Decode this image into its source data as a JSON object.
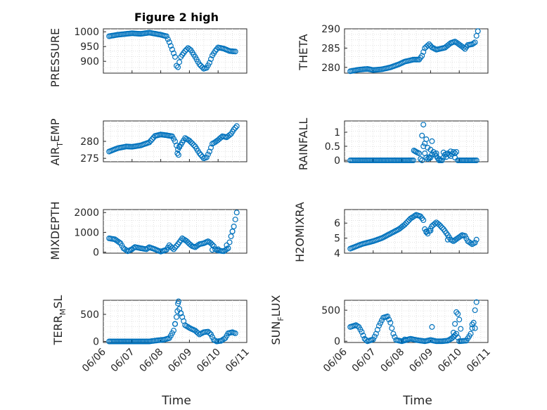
{
  "figure_title": "Figure 2 high",
  "colors": {
    "marker": "#0072BD",
    "axes": "#262626",
    "grid": "#dadada"
  },
  "chart_data": [
    {
      "type": "scatter",
      "ylabel": "PRESSURE",
      "ylim": [
        860,
        1010
      ],
      "yticks": [
        900,
        950,
        1000
      ],
      "xlim": [
        0,
        5
      ],
      "xtick_labels": [],
      "knots": [
        [
          0.2,
          985
        ],
        [
          0.5,
          990
        ],
        [
          1.0,
          995
        ],
        [
          1.3,
          993
        ],
        [
          1.6,
          997
        ],
        [
          2.0,
          990
        ],
        [
          2.2,
          985
        ],
        [
          2.3,
          965
        ],
        [
          2.4,
          940
        ],
        [
          2.5,
          915
        ],
        [
          2.55,
          885
        ],
        [
          2.6,
          880
        ],
        [
          2.7,
          915
        ],
        [
          2.85,
          935
        ],
        [
          2.95,
          945
        ],
        [
          3.05,
          938
        ],
        [
          3.2,
          915
        ],
        [
          3.35,
          890
        ],
        [
          3.5,
          875
        ],
        [
          3.6,
          878
        ],
        [
          3.7,
          895
        ],
        [
          3.8,
          920
        ],
        [
          3.9,
          935
        ],
        [
          4.0,
          947
        ],
        [
          4.2,
          943
        ],
        [
          4.4,
          935
        ],
        [
          4.6,
          933
        ]
      ],
      "extra_points": []
    },
    {
      "type": "scatter",
      "ylabel": "THETA",
      "ylim": [
        278.5,
        290
      ],
      "yticks": [
        280,
        285,
        290
      ],
      "xlim": [
        0,
        5
      ],
      "xtick_labels": [],
      "knots": [
        [
          0.2,
          279
        ],
        [
          0.5,
          279.4
        ],
        [
          0.8,
          279.6
        ],
        [
          1.0,
          279.3
        ],
        [
          1.3,
          279.5
        ],
        [
          1.6,
          280
        ],
        [
          1.9,
          280.8
        ],
        [
          2.1,
          281.5
        ],
        [
          2.4,
          282
        ],
        [
          2.6,
          282
        ],
        [
          2.7,
          283
        ],
        [
          2.8,
          285
        ],
        [
          2.95,
          286
        ],
        [
          3.05,
          285.2
        ],
        [
          3.2,
          284.6
        ],
        [
          3.5,
          285.1
        ],
        [
          3.7,
          286.3
        ],
        [
          3.85,
          286.7
        ],
        [
          3.95,
          286.2
        ],
        [
          4.1,
          285.4
        ],
        [
          4.2,
          284.8
        ],
        [
          4.3,
          285.8
        ],
        [
          4.45,
          286
        ],
        [
          4.55,
          286.5
        ],
        [
          4.6,
          288.2
        ],
        [
          4.65,
          289.4
        ]
      ],
      "extra_points": []
    },
    {
      "type": "scatter",
      "ylabel": "AIR_TEMP",
      "ylim": [
        274,
        286
      ],
      "yticks": [
        275,
        280
      ],
      "xlim": [
        0,
        5
      ],
      "xtick_labels": [],
      "knots": [
        [
          0.2,
          277
        ],
        [
          0.5,
          278
        ],
        [
          0.8,
          278.5
        ],
        [
          1.0,
          278.4
        ],
        [
          1.3,
          278.8
        ],
        [
          1.6,
          279.7
        ],
        [
          1.8,
          281.6
        ],
        [
          2.0,
          282
        ],
        [
          2.2,
          281.8
        ],
        [
          2.4,
          281.5
        ],
        [
          2.5,
          280
        ],
        [
          2.6,
          277.6
        ],
        [
          2.7,
          279
        ],
        [
          2.85,
          281
        ],
        [
          3.0,
          280.2
        ],
        [
          3.2,
          278.5
        ],
        [
          3.35,
          276.5
        ],
        [
          3.5,
          275
        ],
        [
          3.6,
          275.3
        ],
        [
          3.7,
          277
        ],
        [
          3.8,
          279.3
        ],
        [
          3.9,
          279.8
        ],
        [
          4.0,
          280.4
        ],
        [
          4.15,
          281.5
        ],
        [
          4.3,
          281.2
        ],
        [
          4.45,
          282.2
        ],
        [
          4.55,
          283.5
        ],
        [
          4.65,
          284.5
        ]
      ],
      "extra_points": [
        [
          2.58,
          276.5
        ],
        [
          2.62,
          276
        ],
        [
          2.65,
          278.5
        ]
      ]
    },
    {
      "type": "scatter",
      "ylabel": "RAINFALL",
      "ylim": [
        -0.05,
        1.4
      ],
      "yticks": [
        0,
        0.5,
        1
      ],
      "xlim": [
        0,
        5
      ],
      "xtick_labels": [],
      "knots": [
        [
          0.2,
          0
        ],
        [
          2.4,
          0
        ],
        [
          2.42,
          0.35
        ],
        [
          2.5,
          0.3
        ],
        [
          2.6,
          0.25
        ],
        [
          2.65,
          0.05
        ],
        [
          2.7,
          0
        ],
        [
          2.75,
          0.5
        ],
        [
          2.8,
          0.25
        ],
        [
          2.85,
          0.1
        ],
        [
          2.9,
          0.05
        ],
        [
          3.0,
          0.1
        ],
        [
          3.1,
          0.3
        ],
        [
          3.2,
          0.15
        ],
        [
          3.3,
          0
        ],
        [
          3.4,
          0
        ],
        [
          3.5,
          0.2
        ],
        [
          3.6,
          0.25
        ],
        [
          3.7,
          0.15
        ],
        [
          3.8,
          0.3
        ],
        [
          3.85,
          0.25
        ],
        [
          3.9,
          0.3
        ],
        [
          3.95,
          0
        ],
        [
          4.6,
          0
        ]
      ],
      "extra_points": [
        [
          2.75,
          1.27
        ],
        [
          2.7,
          0.88
        ],
        [
          2.85,
          0.75
        ],
        [
          3.05,
          0.68
        ],
        [
          2.8,
          0.6
        ],
        [
          2.9,
          0.45
        ],
        [
          3.0,
          0.38
        ],
        [
          3.2,
          0.25
        ],
        [
          3.45,
          0.28
        ],
        [
          3.7,
          0.32
        ],
        [
          3.3,
          0.05
        ],
        [
          3.55,
          0.12
        ],
        [
          3.85,
          0.1
        ],
        [
          2.95,
          0.12
        ]
      ]
    },
    {
      "type": "scatter",
      "ylabel": "MIXDEPTH",
      "ylim": [
        -50,
        2150
      ],
      "yticks": [
        0,
        1000,
        2000
      ],
      "xlim": [
        0,
        5
      ],
      "xtick_labels": [],
      "knots": [
        [
          0.2,
          700
        ],
        [
          0.4,
          650
        ],
        [
          0.6,
          450
        ],
        [
          0.7,
          200
        ],
        [
          0.85,
          50
        ],
        [
          1.0,
          150
        ],
        [
          1.1,
          260
        ],
        [
          1.3,
          200
        ],
        [
          1.5,
          150
        ],
        [
          1.6,
          250
        ],
        [
          1.8,
          150
        ],
        [
          1.9,
          80
        ],
        [
          2.0,
          30
        ],
        [
          2.2,
          120
        ],
        [
          2.3,
          350
        ],
        [
          2.45,
          150
        ],
        [
          2.6,
          400
        ],
        [
          2.75,
          700
        ],
        [
          2.9,
          560
        ],
        [
          3.0,
          420
        ],
        [
          3.1,
          300
        ],
        [
          3.2,
          250
        ],
        [
          3.35,
          400
        ],
        [
          3.5,
          450
        ],
        [
          3.65,
          550
        ],
        [
          3.75,
          450
        ],
        [
          3.85,
          300
        ],
        [
          3.9,
          150
        ],
        [
          4.0,
          80
        ],
        [
          4.2,
          50
        ],
        [
          4.35,
          200
        ],
        [
          4.45,
          800
        ],
        [
          4.55,
          1300
        ],
        [
          4.65,
          2000
        ]
      ],
      "extra_points": [
        [
          3.8,
          120
        ],
        [
          4.0,
          150
        ],
        [
          4.3,
          350
        ],
        [
          4.5,
          1050
        ]
      ]
    },
    {
      "type": "scatter",
      "ylabel": "H2OMIXRA",
      "ylim": [
        4,
        6.9
      ],
      "yticks": [
        4,
        5,
        6
      ],
      "xlim": [
        0,
        5
      ],
      "xtick_labels": [],
      "knots": [
        [
          0.2,
          4.3
        ],
        [
          0.4,
          4.45
        ],
        [
          0.6,
          4.6
        ],
        [
          0.8,
          4.7
        ],
        [
          1.0,
          4.8
        ],
        [
          1.3,
          5.0
        ],
        [
          1.6,
          5.3
        ],
        [
          1.9,
          5.6
        ],
        [
          2.1,
          5.9
        ],
        [
          2.3,
          6.3
        ],
        [
          2.5,
          6.55
        ],
        [
          2.65,
          6.45
        ],
        [
          2.75,
          6.2
        ],
        [
          2.8,
          5.6
        ],
        [
          2.9,
          5.3
        ],
        [
          3.05,
          5.8
        ],
        [
          3.2,
          6.05
        ],
        [
          3.3,
          5.9
        ],
        [
          3.45,
          5.6
        ],
        [
          3.6,
          5.2
        ],
        [
          3.7,
          4.9
        ],
        [
          3.8,
          4.8
        ],
        [
          3.95,
          5.0
        ],
        [
          4.1,
          5.2
        ],
        [
          4.2,
          5.15
        ],
        [
          4.3,
          4.8
        ],
        [
          4.45,
          4.6
        ],
        [
          4.55,
          4.7
        ],
        [
          4.6,
          4.9
        ]
      ],
      "extra_points": [
        [
          2.85,
          5.4
        ],
        [
          3.0,
          5.5
        ],
        [
          3.6,
          4.9
        ]
      ]
    },
    {
      "type": "scatter",
      "ylabel": "TERR_MSL",
      "ylim": [
        -20,
        760
      ],
      "yticks": [
        0,
        500
      ],
      "xlim": [
        0,
        5
      ],
      "xtick_labels": [
        "06/06",
        "06/07",
        "06/08",
        "06/09",
        "06/10",
        "06/11"
      ],
      "knots": [
        [
          0.2,
          0
        ],
        [
          1.6,
          0
        ],
        [
          1.9,
          20
        ],
        [
          2.1,
          30
        ],
        [
          2.3,
          60
        ],
        [
          2.45,
          200
        ],
        [
          2.55,
          450
        ],
        [
          2.6,
          700
        ],
        [
          2.65,
          600
        ],
        [
          2.75,
          450
        ],
        [
          2.85,
          300
        ],
        [
          3.0,
          250
        ],
        [
          3.2,
          200
        ],
        [
          3.35,
          130
        ],
        [
          3.5,
          170
        ],
        [
          3.65,
          180
        ],
        [
          3.75,
          130
        ],
        [
          3.85,
          30
        ],
        [
          3.95,
          0
        ],
        [
          4.1,
          10
        ],
        [
          4.25,
          60
        ],
        [
          4.35,
          150
        ],
        [
          4.5,
          170
        ],
        [
          4.6,
          150
        ]
      ],
      "extra_points": [
        [
          2.58,
          560
        ],
        [
          2.62,
          740
        ],
        [
          2.7,
          520
        ],
        [
          2.5,
          320
        ]
      ]
    },
    {
      "type": "scatter",
      "ylabel": "SUN_FLUX",
      "ylim": [
        -20,
        660
      ],
      "yticks": [
        0,
        500
      ],
      "xlim": [
        0,
        5
      ],
      "xtick_labels": [
        "06/06",
        "06/07",
        "06/08",
        "06/09",
        "06/10",
        "06/11"
      ],
      "knots": [
        [
          0.2,
          230
        ],
        [
          0.4,
          260
        ],
        [
          0.5,
          230
        ],
        [
          0.6,
          150
        ],
        [
          0.7,
          40
        ],
        [
          0.8,
          0
        ],
        [
          1.0,
          30
        ],
        [
          1.1,
          120
        ],
        [
          1.2,
          250
        ],
        [
          1.35,
          380
        ],
        [
          1.5,
          400
        ],
        [
          1.6,
          300
        ],
        [
          1.7,
          120
        ],
        [
          1.8,
          20
        ],
        [
          2.0,
          0
        ],
        [
          2.3,
          40
        ],
        [
          2.5,
          20
        ],
        [
          2.8,
          0
        ],
        [
          3.0,
          20
        ],
        [
          3.2,
          0
        ],
        [
          3.4,
          0
        ],
        [
          3.6,
          10
        ],
        [
          3.75,
          50
        ],
        [
          3.9,
          120
        ],
        [
          4.0,
          0
        ],
        [
          4.25,
          10
        ],
        [
          4.4,
          120
        ],
        [
          4.5,
          300
        ],
        [
          4.55,
          500
        ],
        [
          4.6,
          630
        ]
      ],
      "extra_points": [
        [
          3.05,
          230
        ],
        [
          3.9,
          470
        ],
        [
          3.95,
          440
        ],
        [
          4.0,
          350
        ],
        [
          4.05,
          200
        ],
        [
          3.85,
          280
        ],
        [
          3.8,
          140
        ],
        [
          4.45,
          270
        ],
        [
          4.55,
          210
        ],
        [
          2.1,
          30
        ]
      ]
    }
  ],
  "axis_ylabels": {
    "p1": {
      "main": "PRESSURE"
    },
    "p2": {
      "main": "THETA"
    },
    "p3": {
      "pre": "AIR",
      "sub": "T",
      "post": "EMP"
    },
    "p4": {
      "main": "RAINFALL"
    },
    "p5": {
      "main": "MIXDEPTH"
    },
    "p6": {
      "main": "H2OMIXRA"
    },
    "p7": {
      "pre": "TERR",
      "sub": "M",
      "post": "SL"
    },
    "p8": {
      "pre": "SUN",
      "sub": "F",
      "post": "LUX"
    }
  },
  "xlabel": "Time"
}
